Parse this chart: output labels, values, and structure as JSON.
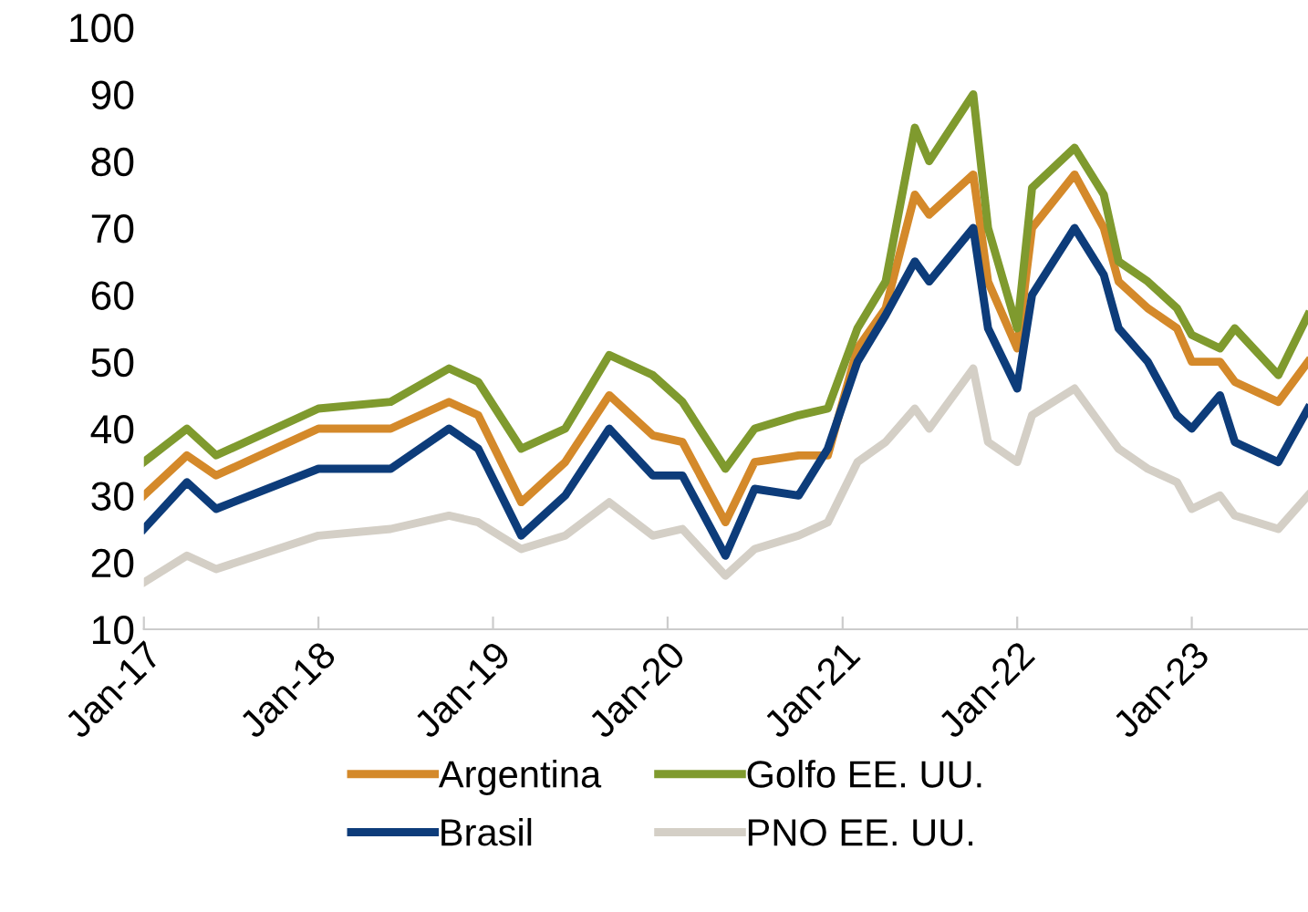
{
  "chart_data": {
    "type": "line",
    "x": [
      "2017-01",
      "2017-04",
      "2017-06",
      "2018-01",
      "2018-06",
      "2018-10",
      "2018-12",
      "2019-03",
      "2019-06",
      "2019-09",
      "2019-12",
      "2020-02",
      "2020-05",
      "2020-07",
      "2020-10",
      "2020-12",
      "2021-02",
      "2021-04",
      "2021-06",
      "2021-07",
      "2021-10",
      "2021-11",
      "2022-01",
      "2022-02",
      "2022-05",
      "2022-07",
      "2022-08",
      "2022-10",
      "2022-12",
      "2023-01",
      "2023-03",
      "2023-04",
      "2023-07",
      "2023-09"
    ],
    "series": [
      {
        "name": "Argentina",
        "color": "#d4892a",
        "values": [
          30,
          36,
          33,
          40,
          40,
          44,
          42,
          29,
          35,
          45,
          39,
          38,
          26,
          35,
          36,
          36,
          52,
          58,
          75,
          72,
          78,
          62,
          52,
          70,
          78,
          70,
          62,
          58,
          55,
          50,
          50,
          47,
          44,
          50
        ]
      },
      {
        "name": "Brasil",
        "color": "#0d3c7a",
        "values": [
          25,
          32,
          28,
          34,
          34,
          40,
          37,
          24,
          30,
          40,
          33,
          33,
          21,
          31,
          30,
          37,
          50,
          57,
          65,
          62,
          70,
          55,
          46,
          60,
          70,
          63,
          55,
          50,
          42,
          40,
          45,
          38,
          35,
          43
        ]
      },
      {
        "name": "Golfo EE. UU.",
        "color": "#7f9a2e",
        "values": [
          35,
          40,
          36,
          43,
          44,
          49,
          47,
          37,
          40,
          51,
          48,
          44,
          34,
          40,
          42,
          43,
          55,
          62,
          85,
          80,
          90,
          70,
          55,
          76,
          82,
          75,
          65,
          62,
          58,
          54,
          52,
          55,
          48,
          57
        ]
      },
      {
        "name": "PNO EE. UU.",
        "color": "#d4cfc6",
        "values": [
          17,
          21,
          19,
          24,
          25,
          27,
          26,
          22,
          24,
          29,
          24,
          25,
          18,
          22,
          24,
          26,
          35,
          38,
          43,
          40,
          49,
          38,
          35,
          42,
          46,
          40,
          37,
          34,
          32,
          28,
          30,
          27,
          25,
          30
        ]
      }
    ],
    "xlim": [
      "2017-01",
      "2023-09"
    ],
    "xticks": [
      {
        "value": "2017-01",
        "label": "Jan-17"
      },
      {
        "value": "2018-01",
        "label": "Jan-18"
      },
      {
        "value": "2019-01",
        "label": "Jan-19"
      },
      {
        "value": "2020-01",
        "label": "Jan-20"
      },
      {
        "value": "2021-01",
        "label": "Jan-21"
      },
      {
        "value": "2022-01",
        "label": "Jan-22"
      },
      {
        "value": "2023-01",
        "label": "Jan-23"
      }
    ],
    "ylim": [
      10,
      100
    ],
    "yticks": [
      10,
      20,
      30,
      40,
      50,
      60,
      70,
      80,
      90,
      100
    ],
    "legend": "bottom",
    "grid": false
  }
}
